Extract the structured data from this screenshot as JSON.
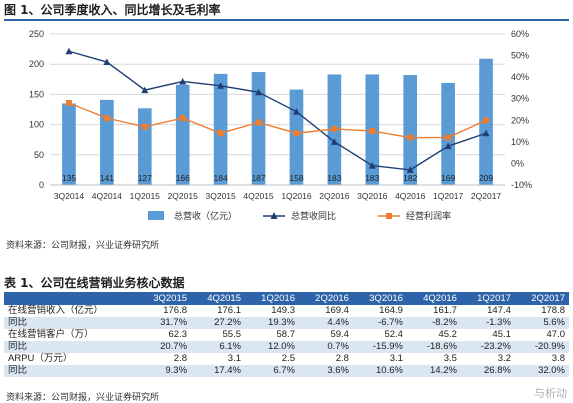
{
  "figure_title": "图 1、公司季度收入、同比增长及毛利率",
  "chart_data": {
    "type": "bar",
    "categories": [
      "3Q2014",
      "4Q2014",
      "1Q2015",
      "2Q2015",
      "3Q2015",
      "4Q2015",
      "1Q2016",
      "2Q2016",
      "3Q2016",
      "4Q2016",
      "1Q2017",
      "2Q2017"
    ],
    "series": [
      {
        "name": "总营收（亿元）",
        "type": "bar",
        "axis": "left",
        "color": "#5b9bd5",
        "values": [
          135,
          141,
          127,
          166,
          184,
          187,
          158,
          183,
          183,
          182,
          169,
          209
        ],
        "labels": [
          "135",
          "141",
          "127",
          "166",
          "184",
          "187",
          "158",
          "183",
          "183",
          "182",
          "169",
          "209"
        ]
      },
      {
        "name": "总营收同比",
        "type": "line",
        "axis": "right",
        "color": "#1f3f73",
        "marker": "triangle",
        "values": [
          52,
          47,
          34,
          38,
          36,
          33,
          24,
          10,
          -1,
          -3,
          8,
          14
        ]
      },
      {
        "name": "经营利润率",
        "type": "line",
        "axis": "right",
        "color": "#ed7d31",
        "marker": "square",
        "values": [
          28,
          21,
          17,
          21,
          14,
          19,
          14,
          16,
          15,
          12,
          12,
          20
        ]
      }
    ],
    "y_left": {
      "min": 0,
      "max": 250,
      "ticks": [
        "0",
        "50",
        "100",
        "150",
        "200",
        "250"
      ]
    },
    "y_right": {
      "min": -10,
      "max": 60,
      "ticks": [
        "-10%",
        "0%",
        "10%",
        "20%",
        "30%",
        "40%",
        "50%",
        "60%"
      ]
    },
    "grid": true,
    "legend_position": "bottom"
  },
  "figure_source": "资料来源：公司财报，兴业证券研究所",
  "table": {
    "title": "表 1、公司在线营销业务核心数据",
    "columns": [
      "3Q2015",
      "4Q2015",
      "1Q2016",
      "2Q2016",
      "3Q2016",
      "4Q2016",
      "1Q2017",
      "2Q2017"
    ],
    "rows": [
      {
        "label": "在线营销收入（亿元）",
        "values": [
          "176.8",
          "176.1",
          "149.3",
          "169.4",
          "164.9",
          "161.7",
          "147.4",
          "178.8"
        ]
      },
      {
        "label": "同比",
        "values": [
          "31.7%",
          "27.2%",
          "19.3%",
          "4.4%",
          "-6.7%",
          "-8.2%",
          "-1.3%",
          "5.6%"
        ]
      },
      {
        "label": "在线营销客户（万）",
        "values": [
          "62.3",
          "55.5",
          "58.7",
          "59.4",
          "52.4",
          "45.2",
          "45.1",
          "47.0"
        ]
      },
      {
        "label": "同比",
        "values": [
          "20.7%",
          "6.1%",
          "12.0%",
          "0.7%",
          "-15.9%",
          "-18.6%",
          "-23.2%",
          "-20.9%"
        ]
      },
      {
        "label": "ARPU（万元）",
        "values": [
          "2.8",
          "3.1",
          "2.5",
          "2.8",
          "3.1",
          "3.5",
          "3.2",
          "3.8"
        ]
      },
      {
        "label": "同比",
        "values": [
          "9.3%",
          "17.4%",
          "6.7%",
          "3.6%",
          "10.6%",
          "14.2%",
          "26.8%",
          "32.0%"
        ]
      }
    ]
  },
  "table_source": "资料来源：公司财报，兴业证券研究所",
  "watermark": "与析动"
}
